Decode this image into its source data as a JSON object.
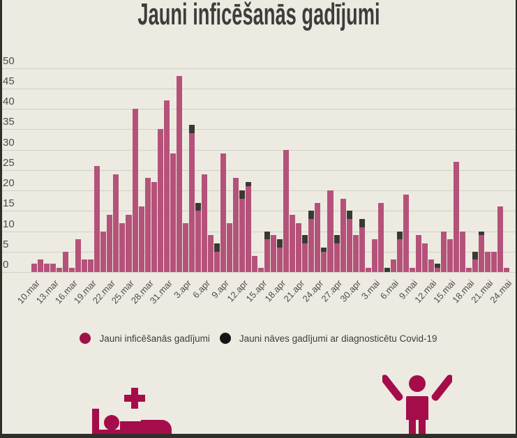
{
  "title": "Jauni inficēšanās gadījumi",
  "colors": {
    "background": "#edebe1",
    "edge": "#2f2f2a",
    "gridline": "#d2d0c5",
    "case_bar": "#b5527a",
    "death_bar": "#3a3931",
    "legend_case_dot": "#9e1148",
    "legend_death_dot": "#141414",
    "icon": "#a50d4a",
    "axis_text": "#4b4b4b",
    "title_text": "#3d3d3d"
  },
  "chart_data": {
    "type": "bar",
    "stacked": true,
    "title": "Jauni inficēšanās gadījumi",
    "grid": true,
    "legend_position": "bottom",
    "ylim": [
      0,
      50
    ],
    "yticks": [
      0,
      5,
      10,
      15,
      20,
      25,
      30,
      35,
      40,
      45,
      50
    ],
    "xtick_labels": [
      "10.mar",
      "13.mar",
      "16.mar",
      "19.mar",
      "22.mar",
      "25.mar",
      "28.mar",
      "31.mar",
      "3.apr",
      "6.apr",
      "9.apr",
      "12.apr",
      "15.apr",
      "18.apr",
      "21.apr",
      "24.apr",
      "27.apr",
      "30.apr",
      "3.mai",
      "6.mai",
      "9.mai",
      "12.mai",
      "15.mai",
      "18.mai",
      "21.mai",
      "24.mai"
    ],
    "xtick_interval_days": 3,
    "days_total": 76,
    "series": [
      {
        "name": "Jauni inficēšanās gadījumi",
        "color": "#b5527a",
        "values": [
          2,
          3,
          2,
          2,
          1,
          5,
          1,
          8,
          3,
          3,
          26,
          10,
          14,
          24,
          12,
          14,
          40,
          16,
          23,
          22,
          35,
          42,
          29,
          48,
          12,
          34,
          15,
          24,
          9,
          5,
          29,
          12,
          23,
          18,
          21,
          4,
          1,
          8,
          9,
          6,
          30,
          14,
          12,
          7,
          13,
          17,
          5,
          20,
          7,
          18,
          13,
          9,
          11,
          1,
          8,
          17,
          0,
          3,
          8,
          19,
          1,
          9,
          7,
          3,
          1,
          10,
          8,
          27,
          10,
          1,
          3,
          9,
          5,
          5,
          16,
          1
        ]
      },
      {
        "name": "Jauni nāves gadījumi ar diagnosticētu Covid-19",
        "color": "#3a3931",
        "values": [
          0,
          0,
          0,
          0,
          0,
          0,
          0,
          0,
          0,
          0,
          0,
          0,
          0,
          0,
          0,
          0,
          0,
          0,
          0,
          0,
          0,
          0,
          0,
          0,
          0,
          2,
          2,
          0,
          0,
          2,
          0,
          0,
          0,
          2,
          1,
          0,
          0,
          2,
          0,
          2,
          0,
          0,
          0,
          2,
          2,
          0,
          1,
          0,
          2,
          0,
          2,
          0,
          2,
          0,
          0,
          0,
          1,
          0,
          2,
          0,
          0,
          0,
          0,
          0,
          1,
          0,
          0,
          0,
          0,
          0,
          2,
          1,
          0,
          0,
          0,
          0
        ]
      }
    ]
  },
  "legend": {
    "items": [
      {
        "label": "Jauni inficēšanās gadījumi",
        "color": "#9e1148"
      },
      {
        "label": "Jauni nāves gadījumi ar diagnosticētu Covid-19",
        "color": "#141414"
      }
    ]
  },
  "footer_icons": [
    {
      "name": "hospital-bed-icon"
    },
    {
      "name": "person-arms-raised-icon"
    }
  ]
}
